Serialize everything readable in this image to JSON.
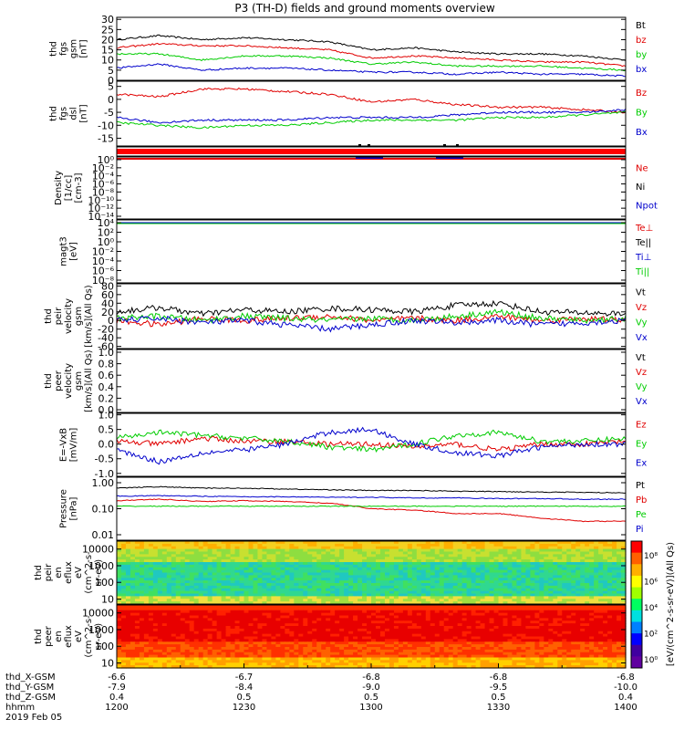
{
  "title": "P3 (TH-D) fields and ground moments overview",
  "colors": {
    "black": "#000000",
    "red": "#e00000",
    "green": "#00cc00",
    "blue": "#0000cc",
    "bar_red": "#ff0000"
  },
  "panels": [
    {
      "key": "fgs_gsm",
      "ylabel": [
        "thd",
        "fgs",
        "gsm",
        "[nT]"
      ],
      "yticks": [
        "30",
        "25",
        "20",
        "15",
        "10",
        "5",
        "0"
      ],
      "ylim": [
        0,
        31
      ],
      "legend": [
        {
          "label": "Bt",
          "color": "black"
        },
        {
          "label": "bz",
          "color": "red"
        },
        {
          "label": "by",
          "color": "green"
        },
        {
          "label": "bx",
          "color": "blue"
        }
      ]
    },
    {
      "key": "fgs_dsl",
      "ylabel": [
        "thd",
        "fgs",
        "dsl",
        "[nT]"
      ],
      "yticks": [
        "5",
        "0",
        "-5",
        "-10",
        "-15"
      ],
      "ylim": [
        -18,
        7
      ],
      "legend": [
        {
          "label": "Bz",
          "color": "red"
        },
        {
          "label": "By",
          "color": "green"
        },
        {
          "label": "Bx",
          "color": "blue"
        }
      ]
    },
    {
      "key": "density",
      "ylabel": [
        "Density",
        "[1/cc]",
        "[cm-3]"
      ],
      "yticks": [
        "10⁰",
        "10⁻²",
        "10⁻⁴",
        "10⁻⁶",
        "10⁻⁸",
        "10⁻¹⁰",
        "10⁻¹²",
        "10⁻¹⁴"
      ],
      "legend": [
        {
          "label": "Ne",
          "color": "red"
        },
        {
          "label": "Ni",
          "color": "black"
        },
        {
          "label": "Npot",
          "color": "blue"
        }
      ]
    },
    {
      "key": "temperature",
      "ylabel": [
        "magt3",
        "[eV]"
      ],
      "yticks": [
        "10⁴",
        "10²",
        "10⁰",
        "10⁻²",
        "10⁻⁴",
        "10⁻⁶",
        "10⁻⁸"
      ],
      "legend": [
        {
          "label": "Te⊥",
          "color": "red"
        },
        {
          "label": "Te||",
          "color": "black"
        },
        {
          "label": "Ti⊥",
          "color": "blue"
        },
        {
          "label": "Ti||",
          "color": "green"
        }
      ]
    },
    {
      "key": "peir_velocity",
      "ylabel": [
        "thd",
        "peir",
        "velocity",
        "gsm",
        "[km/s](All Qs)"
      ],
      "yticks": [
        "80",
        "60",
        "40",
        "20",
        "0",
        "-20",
        "-40",
        "-60"
      ],
      "ylim": [
        -65,
        85
      ],
      "legend": [
        {
          "label": "Vt",
          "color": "black"
        },
        {
          "label": "Vz",
          "color": "red"
        },
        {
          "label": "Vy",
          "color": "green"
        },
        {
          "label": "Vx",
          "color": "blue"
        }
      ]
    },
    {
      "key": "peer_velocity",
      "ylabel": [
        "thd",
        "peer",
        "velocity",
        "gsm",
        "[km/s](All Qs)"
      ],
      "yticks": [
        "1.0",
        "0.8",
        "0.6",
        "0.4",
        "0.2",
        "0.0"
      ],
      "legend": [
        {
          "label": "Vt",
          "color": "black"
        },
        {
          "label": "Vz",
          "color": "red"
        },
        {
          "label": "Vy",
          "color": "green"
        },
        {
          "label": "Vx",
          "color": "blue"
        }
      ]
    },
    {
      "key": "efield",
      "ylabel": [
        "E=-VxB",
        "[mV/m]"
      ],
      "yticks": [
        "1.0",
        "0.5",
        "0.0",
        "-0.5",
        "-1.0"
      ],
      "ylim": [
        -1.1,
        1.05
      ],
      "legend": [
        {
          "label": "Ez",
          "color": "red"
        },
        {
          "label": "Ey",
          "color": "green"
        },
        {
          "label": "Ex",
          "color": "blue"
        }
      ]
    },
    {
      "key": "pressure",
      "ylabel": [
        "Pressure",
        "[nPa]"
      ],
      "yticks": [
        "1.00",
        "0.10",
        "0.01"
      ],
      "legend": [
        {
          "label": "Pt",
          "color": "black"
        },
        {
          "label": "Pb",
          "color": "red"
        },
        {
          "label": "Pe",
          "color": "green"
        },
        {
          "label": "Pi",
          "color": "blue"
        }
      ]
    },
    {
      "key": "peir_eflux",
      "ylabel": [
        "thd",
        "peir",
        "en",
        "eflux",
        "eV",
        "(cm^2-s-",
        "sr-eV)"
      ],
      "yticks": [
        "10000",
        "1000",
        "100",
        "10"
      ]
    },
    {
      "key": "peer_eflux",
      "ylabel": [
        "thd",
        "peer",
        "en",
        "eflux",
        "eV",
        "(cm^2-s-",
        "sr-eV)"
      ],
      "yticks": [
        "10000",
        "1000",
        "100",
        "10"
      ]
    }
  ],
  "colorbar": {
    "ticks": [
      "10⁸",
      "10⁶",
      "10⁴",
      "10²",
      "10⁰"
    ],
    "label": "[eV/(cm^2-s-sr-eV)](All Qs)"
  },
  "xaxis": {
    "rows": [
      {
        "label": "thd_X-GSM",
        "values": [
          "-6.6",
          "-6.7",
          "-6.8",
          "-6.8",
          "-6.8"
        ]
      },
      {
        "label": "thd_Y-GSM",
        "values": [
          "-7.9",
          "-8.4",
          "-9.0",
          "-9.5",
          "-10.0"
        ]
      },
      {
        "label": "thd_Z-GSM",
        "values": [
          "0.4",
          "0.5",
          "0.5",
          "0.5",
          "0.4"
        ]
      },
      {
        "label": "hhmm",
        "values": [
          "1200",
          "1230",
          "1300",
          "1330",
          "1400"
        ]
      }
    ],
    "date": "2019 Feb 05"
  },
  "chart_data": [
    {
      "type": "line",
      "panel": "fgs_gsm",
      "x": [
        "12:00",
        "12:10",
        "12:20",
        "12:30",
        "12:40",
        "12:50",
        "13:00",
        "13:10",
        "13:20",
        "13:30",
        "13:40",
        "13:50",
        "14:00"
      ],
      "series": [
        {
          "name": "Bt",
          "values": [
            20,
            22,
            20,
            21,
            20,
            19,
            15,
            16,
            14,
            13,
            13,
            12,
            10
          ]
        },
        {
          "name": "bz",
          "values": [
            16,
            18,
            17,
            17,
            16,
            15,
            11,
            12,
            11,
            10,
            9,
            9,
            7
          ]
        },
        {
          "name": "by",
          "values": [
            13,
            13,
            10,
            12,
            12,
            11,
            8,
            9,
            7,
            7,
            7,
            6,
            5
          ]
        },
        {
          "name": "bx",
          "values": [
            6,
            8,
            5,
            6,
            6,
            5,
            4,
            4,
            3,
            4,
            3,
            3,
            2
          ]
        }
      ],
      "ylim": [
        0,
        31
      ]
    },
    {
      "type": "line",
      "panel": "fgs_dsl",
      "x": [
        "12:00",
        "12:10",
        "12:20",
        "12:30",
        "12:40",
        "12:50",
        "13:00",
        "13:10",
        "13:20",
        "13:30",
        "13:40",
        "13:50",
        "14:00"
      ],
      "series": [
        {
          "name": "Bz",
          "values": [
            2,
            1,
            4,
            4,
            3,
            2,
            -1,
            0,
            -2,
            -3,
            -3,
            -4,
            -5
          ]
        },
        {
          "name": "By",
          "values": [
            -9,
            -10,
            -11,
            -10,
            -10,
            -9,
            -8,
            -8,
            -8,
            -7,
            -7,
            -6,
            -5
          ]
        },
        {
          "name": "Bx",
          "values": [
            -7,
            -9,
            -8,
            -8,
            -8,
            -7,
            -7,
            -7,
            -6,
            -5,
            -5,
            -5,
            -4
          ]
        }
      ],
      "ylim": [
        -18,
        7
      ]
    },
    {
      "type": "line",
      "panel": "peir_velocity",
      "x": [
        "12:00",
        "12:10",
        "12:20",
        "12:30",
        "12:40",
        "12:50",
        "13:00",
        "13:10",
        "13:20",
        "13:30",
        "13:40",
        "13:50",
        "14:00"
      ],
      "series": [
        {
          "name": "Vt",
          "values": [
            20,
            30,
            15,
            25,
            20,
            28,
            25,
            20,
            35,
            40,
            20,
            18,
            15
          ]
        },
        {
          "name": "Vz",
          "values": [
            0,
            -10,
            5,
            0,
            5,
            10,
            0,
            5,
            0,
            10,
            0,
            5,
            0
          ]
        },
        {
          "name": "Vy",
          "values": [
            5,
            10,
            0,
            10,
            5,
            0,
            5,
            0,
            10,
            20,
            5,
            0,
            5
          ]
        },
        {
          "name": "Vx",
          "values": [
            0,
            5,
            -5,
            0,
            -10,
            -20,
            -10,
            0,
            -5,
            0,
            -10,
            -5,
            0
          ]
        }
      ],
      "ylim": [
        -65,
        85
      ]
    },
    {
      "type": "line",
      "panel": "efield",
      "x": [
        "12:00",
        "12:10",
        "12:20",
        "12:30",
        "12:40",
        "12:50",
        "13:00",
        "13:10",
        "13:20",
        "13:30",
        "13:40",
        "13:50",
        "14:00"
      ],
      "series": [
        {
          "name": "Ez",
          "values": [
            0.1,
            0.0,
            0.2,
            0.1,
            0.1,
            0.0,
            0.0,
            -0.1,
            0.0,
            -0.2,
            0.0,
            0.0,
            0.1
          ]
        },
        {
          "name": "Ey",
          "values": [
            0.2,
            0.4,
            0.3,
            0.2,
            0.1,
            -0.1,
            -0.2,
            0.0,
            0.3,
            0.4,
            0.1,
            0.1,
            0.2
          ]
        },
        {
          "name": "Ex",
          "values": [
            -0.2,
            -0.6,
            -0.3,
            -0.2,
            0.0,
            0.4,
            0.5,
            0.0,
            -0.3,
            -0.4,
            -0.1,
            0.0,
            0.0
          ]
        }
      ],
      "ylim": [
        -1.1,
        1.05
      ]
    },
    {
      "type": "line",
      "panel": "pressure",
      "yscale": "log",
      "x": [
        "12:00",
        "12:10",
        "12:20",
        "12:30",
        "12:40",
        "12:50",
        "13:00",
        "13:10",
        "13:20",
        "13:30",
        "13:40",
        "13:50",
        "14:00"
      ],
      "series": [
        {
          "name": "Pt",
          "values": [
            0.45,
            0.5,
            0.45,
            0.45,
            0.42,
            0.4,
            0.38,
            0.38,
            0.36,
            0.35,
            0.34,
            0.33,
            0.32
          ]
        },
        {
          "name": "Pb",
          "values": [
            0.18,
            0.2,
            0.17,
            0.18,
            0.17,
            0.15,
            0.1,
            0.09,
            0.07,
            0.07,
            0.05,
            0.04,
            0.04
          ]
        },
        {
          "name": "Pe",
          "values": [
            0.12,
            0.12,
            0.12,
            0.12,
            0.12,
            0.12,
            0.12,
            0.12,
            0.12,
            0.12,
            0.12,
            0.12,
            0.12
          ]
        },
        {
          "name": "Pi",
          "values": [
            0.25,
            0.26,
            0.25,
            0.24,
            0.24,
            0.23,
            0.23,
            0.22,
            0.22,
            0.21,
            0.21,
            0.2,
            0.2
          ]
        }
      ],
      "ylim": [
        0.01,
        1.0
      ]
    },
    {
      "type": "heatmap",
      "panel": "peir_eflux",
      "description_levels": "yellow at high energy, green/cyan at mid and low energy",
      "yscale": "log",
      "ylim": [
        5,
        30000
      ]
    },
    {
      "type": "heatmap",
      "panel": "peer_eflux",
      "description_levels": "red dominant across energies, orange/yellow at lowest energies",
      "yscale": "log",
      "ylim": [
        5,
        30000
      ]
    }
  ]
}
